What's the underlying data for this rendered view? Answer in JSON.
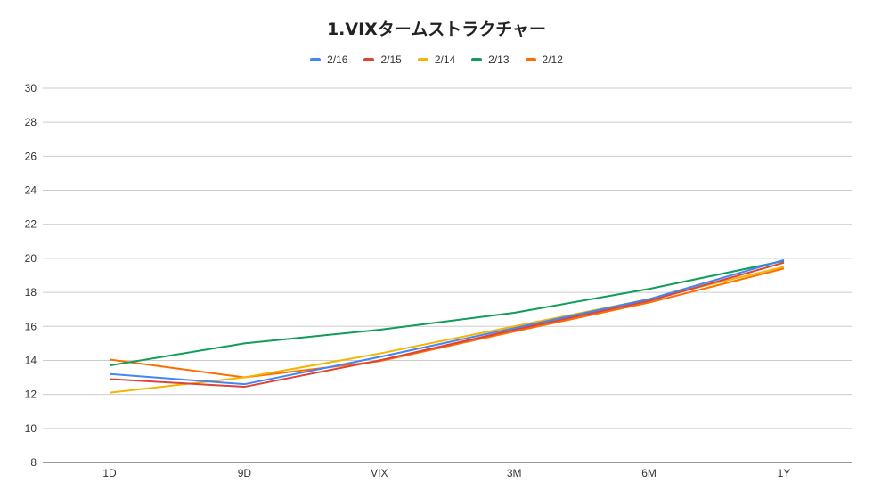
{
  "chart_data": {
    "type": "line",
    "title": "1.VIXタームストラクチャー",
    "xlabel": "",
    "ylabel": "",
    "categories": [
      "1D",
      "9D",
      "VIX",
      "3M",
      "6M",
      "1Y"
    ],
    "ylim": [
      8,
      30
    ],
    "yticks": [
      8,
      10,
      12,
      14,
      16,
      18,
      20,
      22,
      24,
      26,
      28,
      30
    ],
    "grid": true,
    "legend_position": "top",
    "series": [
      {
        "name": "2/16",
        "color": "#4285f4",
        "values": [
          13.2,
          12.6,
          14.2,
          15.9,
          17.6,
          19.9
        ]
      },
      {
        "name": "2/15",
        "color": "#db4437",
        "values": [
          12.9,
          12.45,
          14.0,
          15.8,
          17.5,
          19.75
        ]
      },
      {
        "name": "2/14",
        "color": "#f4b400",
        "values": [
          12.1,
          13.0,
          14.4,
          16.0,
          17.6,
          19.5
        ]
      },
      {
        "name": "2/13",
        "color": "#0f9d58",
        "values": [
          13.7,
          15.0,
          15.8,
          16.8,
          18.2,
          19.85
        ]
      },
      {
        "name": "2/12",
        "color": "#ff6d00",
        "values": [
          14.05,
          13.0,
          13.95,
          15.7,
          17.4,
          19.4
        ]
      }
    ]
  }
}
